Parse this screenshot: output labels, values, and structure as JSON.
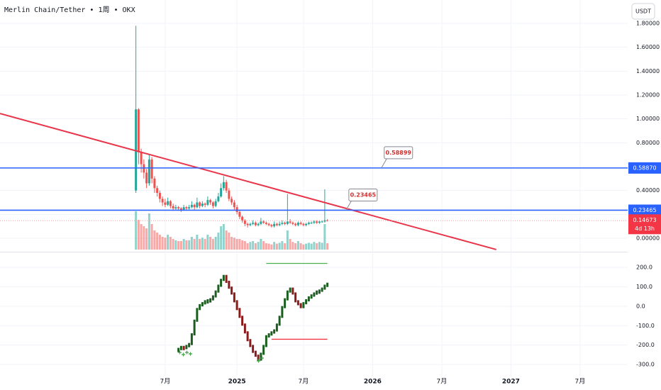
{
  "chart_data": {
    "type": "candlestick",
    "title": "Merlin Chain/Tether • 1周 • OKX",
    "currency_button": "USDT",
    "xlim": [
      -51.1,
      184.9
    ],
    "xticks": [
      {
        "value": 11,
        "label": "7月"
      },
      {
        "value": 38,
        "label": "2025"
      },
      {
        "value": 63,
        "label": "7月"
      },
      {
        "value": 89,
        "label": "2026"
      },
      {
        "value": 115,
        "label": "7月"
      },
      {
        "value": 141,
        "label": "2027"
      },
      {
        "value": 167,
        "label": "7月"
      }
    ],
    "ylim": [
      -0.113,
      1.996
    ],
    "yticks": [
      {
        "value": 0,
        "label": "0.00000"
      },
      {
        "value": 0.2,
        "label": "0.20000"
      },
      {
        "value": 0.4,
        "label": "0.40000"
      },
      {
        "value": 0.6,
        "label": "0.60000"
      },
      {
        "value": 0.8,
        "label": "0.80000"
      },
      {
        "value": 1.0,
        "label": "1.00000"
      },
      {
        "value": 1.2,
        "label": "1.20000"
      },
      {
        "value": 1.4,
        "label": "1.40000"
      },
      {
        "value": 1.6,
        "label": "1.60000"
      },
      {
        "value": 1.8,
        "label": "1.80000"
      }
    ],
    "up_color": "#26a69a",
    "down_color": "#ef5350",
    "candles": [
      [
        0.4,
        1.78,
        0.38,
        1.08
      ],
      [
        1.08,
        1.09,
        0.62,
        0.72
      ],
      [
        0.72,
        0.75,
        0.55,
        0.62
      ],
      [
        0.62,
        0.66,
        0.5,
        0.55
      ],
      [
        0.55,
        0.58,
        0.42,
        0.46
      ],
      [
        0.46,
        0.7,
        0.44,
        0.66
      ],
      [
        0.66,
        0.68,
        0.46,
        0.5
      ],
      [
        0.5,
        0.52,
        0.38,
        0.42
      ],
      [
        0.42,
        0.44,
        0.35,
        0.38
      ],
      [
        0.38,
        0.4,
        0.3,
        0.33
      ],
      [
        0.33,
        0.35,
        0.27,
        0.3
      ],
      [
        0.3,
        0.33,
        0.26,
        0.28
      ],
      [
        0.28,
        0.34,
        0.27,
        0.31
      ],
      [
        0.31,
        0.32,
        0.25,
        0.27
      ],
      [
        0.27,
        0.29,
        0.23,
        0.25
      ],
      [
        0.25,
        0.28,
        0.24,
        0.26
      ],
      [
        0.26,
        0.27,
        0.23,
        0.25
      ],
      [
        0.25,
        0.26,
        0.22,
        0.24
      ],
      [
        0.24,
        0.28,
        0.23,
        0.26
      ],
      [
        0.26,
        0.27,
        0.23,
        0.25
      ],
      [
        0.25,
        0.28,
        0.24,
        0.26
      ],
      [
        0.26,
        0.31,
        0.25,
        0.28
      ],
      [
        0.28,
        0.29,
        0.24,
        0.26
      ],
      [
        0.26,
        0.34,
        0.25,
        0.3
      ],
      [
        0.3,
        0.31,
        0.25,
        0.27
      ],
      [
        0.27,
        0.31,
        0.26,
        0.29
      ],
      [
        0.29,
        0.3,
        0.26,
        0.28
      ],
      [
        0.28,
        0.35,
        0.27,
        0.32
      ],
      [
        0.32,
        0.33,
        0.28,
        0.3
      ],
      [
        0.3,
        0.31,
        0.25,
        0.27
      ],
      [
        0.27,
        0.33,
        0.26,
        0.31
      ],
      [
        0.31,
        0.38,
        0.3,
        0.35
      ],
      [
        0.35,
        0.46,
        0.34,
        0.42
      ],
      [
        0.42,
        0.52,
        0.4,
        0.47
      ],
      [
        0.47,
        0.49,
        0.38,
        0.4
      ],
      [
        0.4,
        0.42,
        0.31,
        0.33
      ],
      [
        0.33,
        0.35,
        0.28,
        0.3
      ],
      [
        0.3,
        0.32,
        0.24,
        0.26
      ],
      [
        0.26,
        0.28,
        0.2,
        0.22
      ],
      [
        0.22,
        0.24,
        0.16,
        0.18
      ],
      [
        0.18,
        0.19,
        0.13,
        0.15
      ],
      [
        0.15,
        0.16,
        0.1,
        0.12
      ],
      [
        0.12,
        0.13,
        0.09,
        0.11
      ],
      [
        0.11,
        0.13,
        0.1,
        0.12
      ],
      [
        0.12,
        0.15,
        0.11,
        0.13
      ],
      [
        0.13,
        0.14,
        0.1,
        0.11
      ],
      [
        0.11,
        0.13,
        0.1,
        0.12
      ],
      [
        0.12,
        0.17,
        0.11,
        0.14
      ],
      [
        0.14,
        0.15,
        0.12,
        0.13
      ],
      [
        0.13,
        0.14,
        0.11,
        0.12
      ],
      [
        0.12,
        0.13,
        0.1,
        0.11
      ],
      [
        0.11,
        0.12,
        0.09,
        0.1
      ],
      [
        0.1,
        0.14,
        0.09,
        0.12
      ],
      [
        0.12,
        0.13,
        0.1,
        0.11
      ],
      [
        0.11,
        0.14,
        0.1,
        0.12
      ],
      [
        0.12,
        0.15,
        0.11,
        0.13
      ],
      [
        0.13,
        0.14,
        0.11,
        0.12
      ],
      [
        0.12,
        0.37,
        0.11,
        0.14
      ],
      [
        0.14,
        0.16,
        0.12,
        0.13
      ],
      [
        0.13,
        0.14,
        0.11,
        0.12
      ],
      [
        0.12,
        0.13,
        0.1,
        0.11
      ],
      [
        0.11,
        0.14,
        0.1,
        0.13
      ],
      [
        0.13,
        0.14,
        0.11,
        0.12
      ],
      [
        0.12,
        0.13,
        0.1,
        0.11
      ],
      [
        0.11,
        0.13,
        0.1,
        0.12
      ],
      [
        0.12,
        0.14,
        0.11,
        0.13
      ],
      [
        0.13,
        0.14,
        0.12,
        0.13
      ],
      [
        0.13,
        0.15,
        0.12,
        0.14
      ],
      [
        0.14,
        0.15,
        0.12,
        0.13
      ],
      [
        0.13,
        0.15,
        0.12,
        0.14
      ],
      [
        0.14,
        0.15,
        0.13,
        0.14
      ],
      [
        0.14,
        0.41,
        0.13,
        0.15
      ],
      [
        0.15,
        0.16,
        0.14,
        0.14673
      ]
    ],
    "volume": [
      90,
      70,
      60,
      55,
      50,
      85,
      60,
      45,
      40,
      35,
      30,
      28,
      35,
      30,
      25,
      22,
      20,
      20,
      25,
      22,
      22,
      30,
      25,
      35,
      25,
      28,
      25,
      35,
      30,
      25,
      30,
      40,
      55,
      60,
      45,
      40,
      30,
      28,
      25,
      25,
      22,
      20,
      15,
      18,
      20,
      15,
      18,
      25,
      20,
      15,
      14,
      12,
      18,
      14,
      16,
      20,
      15,
      45,
      25,
      18,
      15,
      20,
      15,
      12,
      14,
      16,
      14,
      18,
      15,
      18,
      16,
      60,
      15
    ],
    "trend_line": {
      "x": [
        -51.1,
        135.5
      ],
      "y": [
        1.045,
        -0.095
      ],
      "color": "#e8354a"
    },
    "hlines": [
      {
        "value": 0.5887,
        "label": "0.58870"
      },
      {
        "value": 0.23465,
        "label": "0.23465"
      }
    ],
    "hline_color": "#2962ff",
    "callouts": [
      {
        "x": 92.3,
        "value": 0.58899,
        "label": "0.58899"
      },
      {
        "x": 79,
        "value": 0.23465,
        "label": "0.23465"
      }
    ],
    "last_price": {
      "value": 0.14673,
      "label": "0.14673",
      "countdown": "4d 13h"
    },
    "indicator_ylim": [
      -358,
      273
    ],
    "indicator_yticks": [
      {
        "value": 200,
        "label": "200.0"
      },
      {
        "value": 100,
        "label": "100.0"
      },
      {
        "value": 0,
        "label": "0.0"
      },
      {
        "value": -100,
        "label": "-100.0"
      },
      {
        "value": -200,
        "label": "-200.0"
      },
      {
        "value": -300,
        "label": "-300.0"
      }
    ],
    "indicator": [
      null,
      null,
      null,
      null,
      null,
      null,
      null,
      null,
      null,
      null,
      null,
      null,
      null,
      null,
      null,
      null,
      -225,
      -215,
      -220,
      -210,
      -200,
      -150,
      -80,
      -20,
      0,
      10,
      20,
      25,
      30,
      45,
      70,
      100,
      130,
      150,
      120,
      90,
      60,
      20,
      -20,
      -60,
      -100,
      -140,
      -180,
      -210,
      -240,
      -260,
      -280,
      -250,
      -210,
      -160,
      -150,
      -140,
      -130,
      -100,
      -60,
      -10,
      30,
      70,
      85,
      60,
      20,
      5,
      -10,
      10,
      25,
      40,
      50,
      60,
      70,
      75,
      85,
      100,
      110
    ],
    "indicator_levels": [
      {
        "value": 220,
        "x": [
          49,
          72
        ],
        "color": "#4caf50"
      },
      {
        "value": -170,
        "x": [
          51,
          72
        ],
        "color": "#f23645"
      }
    ]
  }
}
